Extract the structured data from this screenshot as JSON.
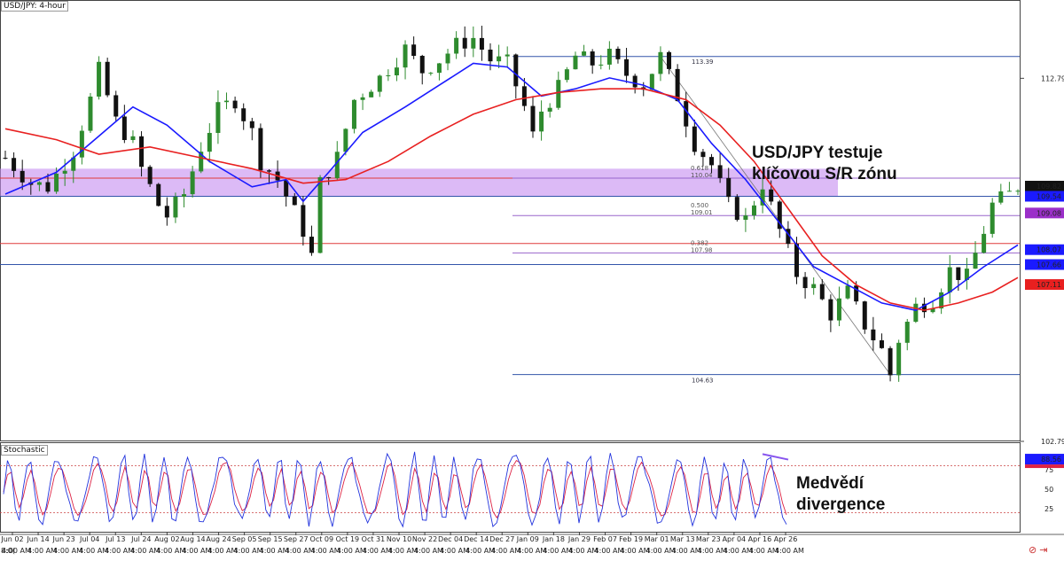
{
  "header": {
    "title": "USD/JPY: 4-hour"
  },
  "indicator": {
    "name": "Stochastic"
  },
  "annotations": {
    "main_line1": "USD/JPY testuje",
    "main_line2": "klíčovou S/R zónu",
    "div_line1": "Medvědí",
    "div_line2": "divergence"
  },
  "footer": {
    "left_label": "8:0(",
    "icons": "⊘ ⇥"
  },
  "colors": {
    "up": "#2e8b2e",
    "down": "#111111",
    "ma_fast": "#1a1aff",
    "ma_slow": "#e82020",
    "zone": "#c48cf0",
    "fib_line": "#9966cc",
    "hline_blue": "#3355aa",
    "hline_red": "#e03a3a",
    "stoch_k": "#2233dd",
    "stoch_d": "#dd2244",
    "div_line": "#8855ee"
  },
  "chart_data": [
    {
      "type": "candlestick",
      "title": "USD/JPY: 4-hour",
      "ylim": [
        102.79,
        114.8
      ],
      "y_ticks": [
        "112.79",
        "102.79"
      ],
      "x_ticks": [
        "Jun 02",
        "Jun 14",
        "Jun 23",
        "Jul 04",
        "Jul 13",
        "Jul 24",
        "Aug 02",
        "Aug 14",
        "Aug 24",
        "Sep 05",
        "Sep 15",
        "Sep 27",
        "Oct 09",
        "Oct 19",
        "Oct 31",
        "Nov 10",
        "Nov 22",
        "Dec 04",
        "Dec 14",
        "Dec 27",
        "Jan 09",
        "Jan 18",
        "Jan 29",
        "Feb 07",
        "Feb 19",
        "Mar 01",
        "Mar 13",
        "Mar 23",
        "Apr 04",
        "Apr 16",
        "Apr 26"
      ],
      "time_labels": "4:00 AM",
      "price_path": [
        [
          0,
          110.6
        ],
        [
          3,
          109.9
        ],
        [
          5,
          109.8
        ],
        [
          8,
          110.8
        ],
        [
          10,
          112.2
        ],
        [
          11,
          113.0
        ],
        [
          13,
          111.6
        ],
        [
          15,
          111.0
        ],
        [
          16,
          110.3
        ],
        [
          18,
          109.3
        ],
        [
          19,
          109.0
        ],
        [
          21,
          109.6
        ],
        [
          23,
          110.9
        ],
        [
          25,
          111.9
        ],
        [
          27,
          112.2
        ],
        [
          29,
          111.3
        ],
        [
          30,
          110.5
        ],
        [
          32,
          110.0
        ],
        [
          34,
          109.1
        ],
        [
          35,
          108.6
        ],
        [
          36,
          107.9
        ],
        [
          37,
          109.9
        ],
        [
          39,
          110.6
        ],
        [
          41,
          112.2
        ],
        [
          44,
          112.8
        ],
        [
          47,
          113.6
        ],
        [
          49,
          113.0
        ],
        [
          51,
          113.3
        ],
        [
          53,
          113.7
        ],
        [
          55,
          113.9
        ],
        [
          57,
          113.3
        ],
        [
          59,
          113.2
        ],
        [
          61,
          112.0
        ],
        [
          62,
          111.2
        ],
        [
          63,
          111.9
        ],
        [
          65,
          112.5
        ],
        [
          67,
          113.4
        ],
        [
          69,
          113.2
        ],
        [
          71,
          113.4
        ],
        [
          73,
          112.9
        ],
        [
          75,
          112.6
        ],
        [
          77,
          113.39
        ],
        [
          79,
          112.3
        ],
        [
          81,
          111.0
        ],
        [
          83,
          110.4
        ],
        [
          85,
          109.3
        ],
        [
          87,
          108.9
        ],
        [
          89,
          109.9
        ],
        [
          91,
          108.6
        ],
        [
          93,
          107.4
        ],
        [
          95,
          107.0
        ],
        [
          97,
          106.3
        ],
        [
          99,
          106.9
        ],
        [
          101,
          106.0
        ],
        [
          103,
          105.3
        ],
        [
          104,
          104.63
        ],
        [
          105,
          105.6
        ],
        [
          107,
          106.5
        ],
        [
          109,
          106.7
        ],
        [
          111,
          107.5
        ],
        [
          113,
          107.3
        ],
        [
          115,
          108.6
        ],
        [
          116,
          109.3
        ],
        [
          118,
          109.6
        ],
        [
          119,
          109.82
        ]
      ],
      "moving_averages": [
        {
          "name": "",
          "color": "ma_fast",
          "points": [
            [
              0,
              109.6
            ],
            [
              6,
              110.2
            ],
            [
              11,
              111.2
            ],
            [
              15,
              112.0
            ],
            [
              19,
              111.5
            ],
            [
              24,
              110.5
            ],
            [
              29,
              109.8
            ],
            [
              33,
              110.0
            ],
            [
              35,
              109.4
            ],
            [
              38,
              110.2
            ],
            [
              42,
              111.3
            ],
            [
              47,
              112.0
            ],
            [
              51,
              112.6
            ],
            [
              55,
              113.2
            ],
            [
              59,
              113.1
            ],
            [
              63,
              112.3
            ],
            [
              67,
              112.5
            ],
            [
              71,
              112.8
            ],
            [
              75,
              112.6
            ],
            [
              79,
              112.2
            ],
            [
              83,
              111.0
            ],
            [
              87,
              110.0
            ],
            [
              91,
              108.8
            ],
            [
              95,
              107.6
            ],
            [
              99,
              107.1
            ],
            [
              103,
              106.6
            ],
            [
              107,
              106.4
            ],
            [
              111,
              106.9
            ],
            [
              115,
              107.6
            ],
            [
              119,
              108.2
            ]
          ]
        },
        {
          "name": "",
          "color": "ma_slow",
          "points": [
            [
              0,
              111.4
            ],
            [
              6,
              111.1
            ],
            [
              11,
              110.7
            ],
            [
              17,
              110.9
            ],
            [
              23,
              110.6
            ],
            [
              29,
              110.3
            ],
            [
              35,
              109.9
            ],
            [
              40,
              110.0
            ],
            [
              45,
              110.5
            ],
            [
              50,
              111.2
            ],
            [
              55,
              111.8
            ],
            [
              60,
              112.2
            ],
            [
              65,
              112.4
            ],
            [
              70,
              112.5
            ],
            [
              75,
              112.5
            ],
            [
              80,
              112.2
            ],
            [
              84,
              111.5
            ],
            [
              88,
              110.5
            ],
            [
              92,
              109.2
            ],
            [
              96,
              107.9
            ],
            [
              100,
              107.1
            ],
            [
              104,
              106.6
            ],
            [
              108,
              106.4
            ],
            [
              112,
              106.6
            ],
            [
              116,
              106.9
            ],
            [
              119,
              107.3
            ]
          ]
        }
      ],
      "sr_zone": [
        109.54,
        110.3
      ],
      "horizontal_levels": [
        {
          "value": 113.39,
          "color": "hline_blue",
          "label": "113.39"
        },
        {
          "value": 104.63,
          "color": "hline_blue",
          "label": "104.63"
        },
        {
          "value": 109.54,
          "color": "hline_blue",
          "label": ""
        },
        {
          "value": 107.66,
          "color": "hline_blue",
          "label": ""
        },
        {
          "value": 108.24,
          "color": "hline_red",
          "label": ""
        },
        {
          "value": 110.04,
          "color": "hline_red",
          "label": ""
        }
      ],
      "fibonacci": [
        {
          "ratio": "0.618",
          "value": 110.04
        },
        {
          "ratio": "0.500",
          "value": 109.01
        },
        {
          "ratio": "0.382",
          "value": 107.98
        }
      ],
      "price_badges": [
        {
          "label": "109.82",
          "value": 109.82,
          "bg": "#111111"
        },
        {
          "label": "109.54",
          "value": 109.54,
          "bg": "#1a1aff"
        },
        {
          "label": "109.08",
          "value": 109.08,
          "bg": "#9b2fc9"
        },
        {
          "label": "108.07",
          "value": 108.07,
          "bg": "#1a1aff"
        },
        {
          "label": "107.66",
          "value": 107.66,
          "bg": "#1a1aff"
        },
        {
          "label": "107.11",
          "value": 107.11,
          "bg": "#e82020"
        }
      ]
    },
    {
      "type": "line",
      "title": "Stochastic",
      "ylim": [
        0,
        100
      ],
      "y_ticks": [
        "75",
        "50",
        "25"
      ],
      "levels": [
        80,
        20
      ],
      "badge": {
        "label": "88.56",
        "value": 88.56
      },
      "divergence": [
        [
          119,
          95
        ],
        [
          124,
          88
        ]
      ]
    }
  ]
}
